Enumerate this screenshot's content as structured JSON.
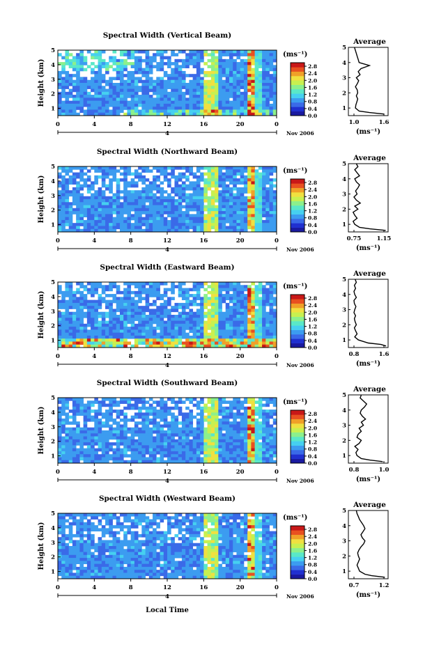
{
  "figure": {
    "xlabel": "Local Time",
    "date_label": "4",
    "month_label": "Nov 2006",
    "avg_title": "Average",
    "unit_label": "(ms⁻¹)",
    "colorscale": [
      "#1a1aa0",
      "#2030d0",
      "#3a6ae8",
      "#3c9cf0",
      "#46d0f0",
      "#5ae8c8",
      "#8cf08c",
      "#c8f050",
      "#f0e040",
      "#f0a028",
      "#e85020",
      "#c81818"
    ]
  },
  "chart_data": [
    {
      "type": "heatmap",
      "title": "Spectral Width (Vertical Beam)",
      "ylabel": "Height (km)",
      "xlim": [
        0,
        24
      ],
      "ylim": [
        0.5,
        5
      ],
      "xticks": [
        "0",
        "4",
        "8",
        "12",
        "16",
        "20",
        "0"
      ],
      "yticks": [
        "1",
        "2",
        "3",
        "4",
        "5"
      ],
      "colorbar_ticks": [
        "0.0",
        "0.4",
        "0.8",
        "1.2",
        "1.6",
        "2.0",
        "2.4",
        "2.8"
      ],
      "colorbar_max": 3.0,
      "profile": {
        "xticks": [
          "1.0",
          "1.6"
        ],
        "xlim": [
          0.85,
          1.7
        ],
        "heights": [
          0.6,
          0.7,
          0.8,
          1.0,
          1.2,
          1.4,
          1.6,
          1.8,
          2.0,
          2.2,
          2.4,
          2.6,
          2.8,
          3.0,
          3.2,
          3.4,
          3.6,
          3.8,
          4.0,
          4.2,
          4.4,
          4.6,
          4.8,
          5.0
        ],
        "values": [
          1.62,
          1.3,
          1.08,
          1.0,
          1.01,
          1.03,
          1.05,
          1.02,
          1.05,
          1.04,
          1.0,
          1.04,
          1.07,
          1.02,
          1.1,
          1.06,
          1.12,
          1.3,
          1.08,
          1.06,
          1.04,
          1.02,
          1.0,
          0.98
        ]
      }
    },
    {
      "type": "heatmap",
      "title": "Spectral Width (Northward Beam)",
      "ylabel": "Height (km)",
      "xlim": [
        0,
        24
      ],
      "ylim": [
        0.5,
        5
      ],
      "xticks": [
        "0",
        "4",
        "8",
        "12",
        "16",
        "20",
        "0"
      ],
      "yticks": [
        "1",
        "2",
        "3",
        "4",
        "5"
      ],
      "colorbar_ticks": [
        "0.0",
        "0.4",
        "0.8",
        "1.2",
        "1.6",
        "2.0",
        "2.4",
        "2.8"
      ],
      "colorbar_max": 3.0,
      "profile": {
        "xticks": [
          "0.75",
          "1.15"
        ],
        "xlim": [
          0.68,
          1.18
        ],
        "heights": [
          0.6,
          0.7,
          0.8,
          1.0,
          1.2,
          1.4,
          1.6,
          1.8,
          2.0,
          2.2,
          2.4,
          2.6,
          2.8,
          3.0,
          3.2,
          3.4,
          3.6,
          3.8,
          4.0,
          4.2,
          4.4,
          4.6,
          4.8,
          5.0
        ],
        "values": [
          1.15,
          0.95,
          0.82,
          0.76,
          0.74,
          0.79,
          0.76,
          0.74,
          0.8,
          0.76,
          0.83,
          0.78,
          0.75,
          0.79,
          0.77,
          0.8,
          0.82,
          0.78,
          0.76,
          0.82,
          0.79,
          0.76,
          0.8,
          0.78
        ]
      }
    },
    {
      "type": "heatmap",
      "title": "Spectral Width (Eastward Beam)",
      "ylabel": "Height (km)",
      "xlim": [
        0,
        24
      ],
      "ylim": [
        0.5,
        5
      ],
      "xticks": [
        "0",
        "4",
        "8",
        "12",
        "16",
        "20",
        "0"
      ],
      "yticks": [
        "1",
        "2",
        "3",
        "4",
        "5"
      ],
      "colorbar_ticks": [
        "0.0",
        "0.4",
        "0.8",
        "1.2",
        "1.6",
        "2.0",
        "2.4",
        "2.8"
      ],
      "colorbar_max": 3.0,
      "profile": {
        "xticks": [
          "0.8",
          "1.6"
        ],
        "xlim": [
          0.7,
          1.7
        ],
        "heights": [
          0.6,
          0.7,
          0.8,
          1.0,
          1.2,
          1.4,
          1.6,
          1.8,
          2.0,
          2.2,
          2.4,
          2.6,
          2.8,
          3.0,
          3.2,
          3.4,
          3.6,
          3.8,
          4.0,
          4.2,
          4.4,
          4.6,
          4.8,
          5.0
        ],
        "values": [
          1.65,
          1.52,
          1.2,
          0.95,
          0.86,
          0.92,
          0.88,
          0.85,
          0.9,
          0.87,
          0.85,
          0.88,
          0.84,
          0.86,
          0.89,
          0.85,
          0.84,
          0.9,
          0.86,
          0.84,
          0.88,
          0.85,
          0.9,
          0.87
        ]
      }
    },
    {
      "type": "heatmap",
      "title": "Spectral Width (Southward Beam)",
      "ylabel": "Height (km)",
      "xlim": [
        0,
        24
      ],
      "ylim": [
        0.5,
        5
      ],
      "xticks": [
        "0",
        "4",
        "8",
        "12",
        "16",
        "20",
        "0"
      ],
      "yticks": [
        "1",
        "2",
        "3",
        "4",
        "5"
      ],
      "colorbar_ticks": [
        "0.0",
        "0.4",
        "0.8",
        "1.2",
        "1.6",
        "2.0",
        "2.4",
        "2.8"
      ],
      "colorbar_max": 3.0,
      "profile": {
        "xticks": [
          "0.8",
          "1.0"
        ],
        "xlim": [
          0.68,
          1.05
        ],
        "heights": [
          0.6,
          0.7,
          0.8,
          1.0,
          1.2,
          1.4,
          1.6,
          1.8,
          2.0,
          2.2,
          2.4,
          2.6,
          2.8,
          3.0,
          3.2,
          3.4,
          3.6,
          3.8,
          4.0,
          4.2,
          4.4,
          4.6,
          4.8,
          5.0
        ],
        "values": [
          1.0,
          0.88,
          0.8,
          0.76,
          0.75,
          0.77,
          0.74,
          0.78,
          0.8,
          0.76,
          0.77,
          0.8,
          0.78,
          0.82,
          0.8,
          0.84,
          0.81,
          0.79,
          0.8,
          0.83,
          0.85,
          0.82,
          0.79,
          0.8
        ]
      }
    },
    {
      "type": "heatmap",
      "title": "Spectral Width (Westward Beam)",
      "ylabel": "Height (km)",
      "xlim": [
        0,
        24
      ],
      "ylim": [
        0.5,
        5
      ],
      "xticks": [
        "0",
        "4",
        "8",
        "12",
        "16",
        "20",
        "0"
      ],
      "yticks": [
        "1",
        "2",
        "3",
        "4",
        "5"
      ],
      "colorbar_ticks": [
        "0.0",
        "0.4",
        "0.8",
        "1.2",
        "1.6",
        "2.0",
        "2.4",
        "2.8"
      ],
      "colorbar_max": 3.0,
      "profile": {
        "xticks": [
          "0.7",
          "1.2"
        ],
        "xlim": [
          0.65,
          1.25
        ],
        "heights": [
          0.6,
          0.7,
          0.8,
          1.0,
          1.2,
          1.4,
          1.6,
          1.8,
          2.0,
          2.2,
          2.4,
          2.6,
          2.8,
          3.0,
          3.2,
          3.4,
          3.6,
          3.8,
          4.0,
          4.2,
          4.4,
          4.6,
          4.8,
          5.0
        ],
        "values": [
          1.2,
          1.0,
          0.9,
          0.82,
          0.8,
          0.78,
          0.8,
          0.82,
          0.8,
          0.79,
          0.81,
          0.84,
          0.88,
          0.9,
          0.86,
          0.84,
          0.87,
          0.9,
          0.88,
          0.85,
          0.82,
          0.8,
          0.78,
          0.77
        ]
      }
    }
  ]
}
